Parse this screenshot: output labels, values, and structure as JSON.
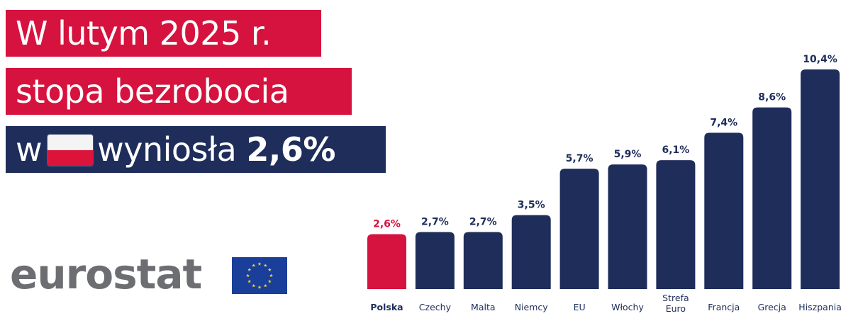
{
  "headline": {
    "line1": "W lutym 2025 r.",
    "line2": "stopa bezrobocia",
    "line3_prefix": "w",
    "line3_middle": "wyniosła",
    "line3_value": "2,6%",
    "flag_icon": "poland-flag-icon"
  },
  "logo": {
    "text": "eurostat",
    "flag_icon": "eu-flag-icon",
    "text_color": "#6d6e71"
  },
  "colors": {
    "highlight": "#d6123e",
    "bar": "#1e2d5a",
    "label_dark": "#1e2d5a",
    "axis_label": "#1e2d5a"
  },
  "chart_data": {
    "type": "bar",
    "title": "W lutym 2025 r. stopa bezrobocia w Polsce wyniosła 2,6%",
    "xlabel": "",
    "ylabel": "",
    "ylim": [
      0,
      10.4
    ],
    "grid": false,
    "legend": "none",
    "categories": [
      "Polska",
      "Czechy",
      "Malta",
      "Niemcy",
      "EU",
      "Włochy",
      "Strefa Euro",
      "Francja",
      "Grecja",
      "Hiszpania"
    ],
    "category_lines": [
      [
        "Polska"
      ],
      [
        "Czechy"
      ],
      [
        "Malta"
      ],
      [
        "Niemcy"
      ],
      [
        "EU"
      ],
      [
        "Włochy"
      ],
      [
        "Strefa",
        "Euro"
      ],
      [
        "Francja"
      ],
      [
        "Grecja"
      ],
      [
        "Hiszpania"
      ]
    ],
    "values": [
      2.6,
      2.7,
      2.7,
      3.5,
      5.7,
      5.9,
      6.1,
      7.4,
      8.6,
      10.4
    ],
    "data_labels": [
      "2,6%",
      "2,7%",
      "2,7%",
      "3,5%",
      "5,7%",
      "5,9%",
      "6,1%",
      "7,4%",
      "8,6%",
      "10,4%"
    ],
    "highlight_index": 0
  }
}
